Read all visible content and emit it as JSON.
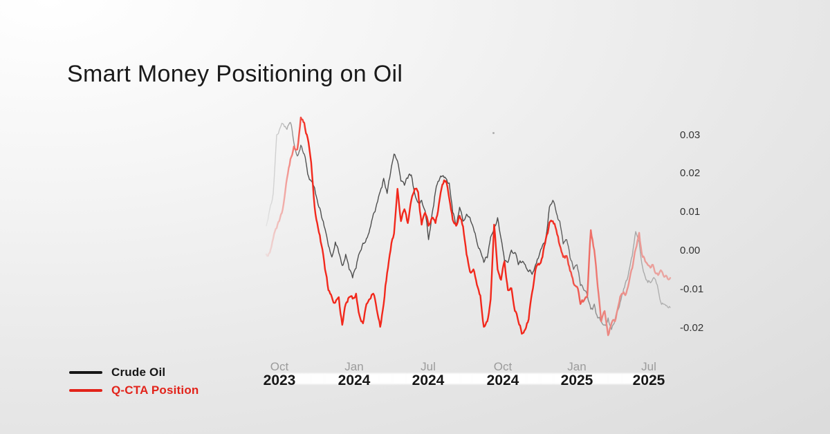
{
  "page": {
    "title": "Smart Money Positioning on Oil"
  },
  "legend": {
    "items": [
      {
        "label": "Crude Oil",
        "color": "#161616"
      },
      {
        "label": "Q-CTA Position",
        "color": "#e2231a"
      }
    ]
  },
  "colors": {
    "crude_line": "#4d4d4d",
    "qcta_line": "#f2281c",
    "month_tick": "#9b9b9b",
    "year_tick": "#161616",
    "y_tick": "#333333"
  },
  "chart_data": {
    "type": "line",
    "title": "Smart Money Positioning on Oil",
    "xlabel": "",
    "ylabel": "",
    "ylim": [
      -0.025,
      0.036
    ],
    "grid": false,
    "legend_position": "bottom-left",
    "style_note": "lines fade out at oldest (left) and newest (right) edges",
    "y_ticks": [
      {
        "label": "0.03",
        "value": 0.03
      },
      {
        "label": "0.02",
        "value": 0.02
      },
      {
        "label": "0.01",
        "value": 0.01
      },
      {
        "label": "0.00",
        "value": 0.0
      },
      {
        "label": "-0.01",
        "value": -0.01
      },
      {
        "label": "-0.02",
        "value": -0.02
      }
    ],
    "x_ticks": [
      {
        "month": "Oct",
        "year": "2023"
      },
      {
        "month": "Jan",
        "year": "2024"
      },
      {
        "month": "Jul",
        "year": "2024"
      },
      {
        "month": "Oct",
        "year": "2024"
      },
      {
        "month": "Jan",
        "year": "2025"
      },
      {
        "month": "Jul",
        "year": "2025"
      }
    ],
    "series": [
      {
        "name": "Crude Oil",
        "values": [
          0.0065,
          0.0108,
          0.0149,
          0.0301,
          0.0319,
          0.0328,
          0.0315,
          0.0333,
          0.028,
          0.0246,
          0.0274,
          0.0251,
          0.0199,
          0.0181,
          0.0163,
          0.012,
          0.0088,
          0.0057,
          0.0013,
          -0.0016,
          0.0023,
          -0.0005,
          -0.0038,
          -0.0009,
          -0.0048,
          -0.007,
          -0.0045,
          -0.0005,
          0.002,
          0.0032,
          0.0057,
          0.0095,
          0.0122,
          0.0154,
          0.0188,
          0.0149,
          0.0203,
          0.0251,
          0.0233,
          0.0181,
          0.017,
          0.0188,
          0.0197,
          0.0149,
          0.0125,
          0.0131,
          0.0104,
          0.0029,
          0.0095,
          0.0154,
          0.0181,
          0.0194,
          0.0188,
          0.0176,
          0.01,
          0.0065,
          0.0113,
          0.0077,
          0.0095,
          0.0086,
          0.0059,
          0.0023,
          0.0,
          -0.003,
          -0.0018,
          0.0036,
          0.0059,
          0.0086,
          0.0032,
          -0.0025,
          -0.003,
          0.0002,
          -0.0004,
          -0.0036,
          -0.003,
          -0.0036,
          -0.0054,
          -0.0061,
          -0.0036,
          -0.0013,
          0.0014,
          0.0036,
          0.0113,
          0.0131,
          0.0099,
          0.0077,
          0.0018,
          0.0029,
          -0.0018,
          -0.0048,
          -0.0036,
          -0.009,
          -0.0102,
          -0.0116,
          -0.0151,
          -0.0138,
          -0.0174,
          -0.0183,
          -0.0192,
          -0.0174,
          -0.0204,
          -0.0179,
          -0.0151,
          -0.0115,
          -0.0084,
          -0.0054,
          -0.0013,
          0.005,
          0.0023,
          -0.0043,
          -0.0075,
          -0.0079,
          -0.0072,
          -0.0084,
          -0.0125,
          -0.0138,
          -0.0142,
          -0.0147
        ]
      },
      {
        "name": "Q-CTA Position",
        "values": [
          -0.0009,
          -0.0005,
          0.0032,
          0.0059,
          0.0086,
          0.0122,
          0.0188,
          0.0238,
          0.0271,
          0.0263,
          0.0346,
          0.0332,
          0.0292,
          0.0229,
          0.0113,
          0.0059,
          0.0014,
          -0.0048,
          -0.0102,
          -0.012,
          -0.0134,
          -0.012,
          -0.0192,
          -0.0138,
          -0.012,
          -0.0124,
          -0.0111,
          -0.0168,
          -0.0188,
          -0.0138,
          -0.0125,
          -0.0111,
          -0.0152,
          -0.0197,
          -0.0138,
          -0.0057,
          0.0002,
          0.0045,
          0.0161,
          0.0077,
          0.0108,
          0.0072,
          0.0131,
          0.0161,
          0.0152,
          0.0068,
          0.0099,
          0.0065,
          0.0086,
          0.0072,
          0.0122,
          0.0172,
          0.0181,
          0.0136,
          0.0081,
          0.0065,
          0.0091,
          0.0063,
          -0.0009,
          -0.0054,
          -0.0048,
          -0.0088,
          -0.0116,
          -0.0197,
          -0.0183,
          -0.0125,
          0.0068,
          -0.0048,
          -0.0075,
          -0.0027,
          -0.0102,
          -0.0097,
          -0.0156,
          -0.0183,
          -0.0215,
          -0.0204,
          -0.0177,
          -0.0108,
          -0.0048,
          -0.0036,
          -0.0016,
          0.0032,
          0.0073,
          0.0077,
          0.0054,
          0.0014,
          -0.0016,
          -0.0013,
          -0.0052,
          -0.0084,
          -0.0093,
          -0.0138,
          -0.0129,
          -0.0116,
          0.0054,
          0.0002,
          -0.0093,
          -0.0183,
          -0.0156,
          -0.0219,
          -0.0188,
          -0.0183,
          -0.0142,
          -0.0111,
          -0.0115,
          -0.0084,
          -0.0045,
          0.0005,
          0.0047,
          -0.0016,
          -0.003,
          -0.0039,
          -0.0036,
          -0.0059,
          -0.0054,
          -0.0063,
          -0.0066,
          -0.007
        ]
      }
    ]
  }
}
